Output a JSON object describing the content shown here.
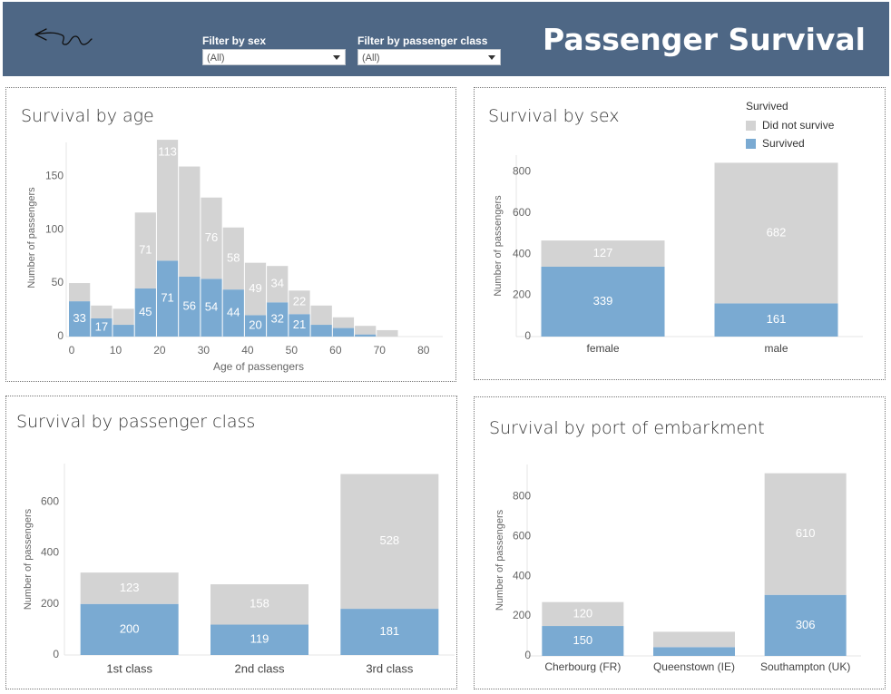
{
  "header": {
    "title": "Passenger Survival",
    "filter_sex": {
      "label": "Filter by sex",
      "value": "(All)"
    },
    "filter_class": {
      "label": "Filter by passenger class",
      "value": "(All)"
    }
  },
  "colors": {
    "header_bg": "#4e6785",
    "survived": "#7aaad2",
    "did_not_survive": "#d3d3d3"
  },
  "legend": {
    "title": "Survived",
    "items": [
      {
        "label": "Did not survive",
        "color": "#d3d3d3"
      },
      {
        "label": "Survived",
        "color": "#7aaad2"
      }
    ]
  },
  "chart_data": [
    {
      "id": "age",
      "type": "bar",
      "stacked": true,
      "title": "Survival by age",
      "xlabel": "Age of passengers",
      "ylabel": "Number of passengers",
      "xlim": [
        0,
        85
      ],
      "ylim": [
        0,
        190
      ],
      "xticks": [
        0,
        10,
        20,
        30,
        40,
        50,
        60,
        70,
        80
      ],
      "yticks": [
        0,
        50,
        100,
        150
      ],
      "bin_width": 5,
      "bins": [
        0,
        5,
        10,
        15,
        20,
        25,
        30,
        35,
        40,
        45,
        50,
        55,
        60,
        65,
        70
      ],
      "series": [
        {
          "name": "Survived",
          "values": [
            33,
            17,
            11,
            45,
            71,
            56,
            54,
            44,
            20,
            32,
            21,
            11,
            8,
            2,
            0
          ]
        },
        {
          "name": "Did not survive",
          "values": [
            17,
            12,
            15,
            71,
            113,
            103,
            76,
            58,
            49,
            34,
            22,
            18,
            10,
            8,
            6
          ]
        }
      ],
      "data_labels": {
        "Survived": [
          33,
          17,
          null,
          45,
          71,
          56,
          54,
          44,
          20,
          32,
          21,
          null,
          null,
          null,
          null
        ],
        "Did not survive": [
          null,
          null,
          null,
          71,
          113,
          null,
          76,
          58,
          49,
          34,
          22,
          null,
          null,
          null,
          null
        ]
      }
    },
    {
      "id": "sex",
      "type": "bar",
      "stacked": true,
      "title": "Survival by sex",
      "ylabel": "Number of passengers",
      "categories": [
        "female",
        "male"
      ],
      "ylim": [
        0,
        880
      ],
      "yticks": [
        0,
        200,
        400,
        600,
        800
      ],
      "series": [
        {
          "name": "Survived",
          "values": [
            339,
            161
          ]
        },
        {
          "name": "Did not survive",
          "values": [
            127,
            682
          ]
        }
      ]
    },
    {
      "id": "class",
      "type": "bar",
      "stacked": true,
      "title": "Survival by passenger class",
      "ylabel": "Number of passengers",
      "categories": [
        "1st class",
        "2nd class",
        "3rd class"
      ],
      "ylim": [
        0,
        750
      ],
      "yticks": [
        0,
        200,
        400,
        600
      ],
      "series": [
        {
          "name": "Survived",
          "values": [
            200,
            119,
            181
          ]
        },
        {
          "name": "Did not survive",
          "values": [
            123,
            158,
            528
          ]
        }
      ]
    },
    {
      "id": "port",
      "type": "bar",
      "stacked": true,
      "title": "Survival by port of embarkment",
      "ylabel": "Number of passengers",
      "categories": [
        "Cherbourg (FR)",
        "Queenstown (IE)",
        "Southampton (UK)"
      ],
      "ylim": [
        0,
        960
      ],
      "yticks": [
        0,
        200,
        400,
        600,
        800
      ],
      "series": [
        {
          "name": "Survived",
          "values": [
            150,
            44,
            306
          ]
        },
        {
          "name": "Did not survive",
          "values": [
            120,
            77,
            610
          ]
        }
      ],
      "data_labels": {
        "Survived": [
          150,
          null,
          306
        ],
        "Did not survive": [
          120,
          null,
          610
        ]
      }
    }
  ]
}
